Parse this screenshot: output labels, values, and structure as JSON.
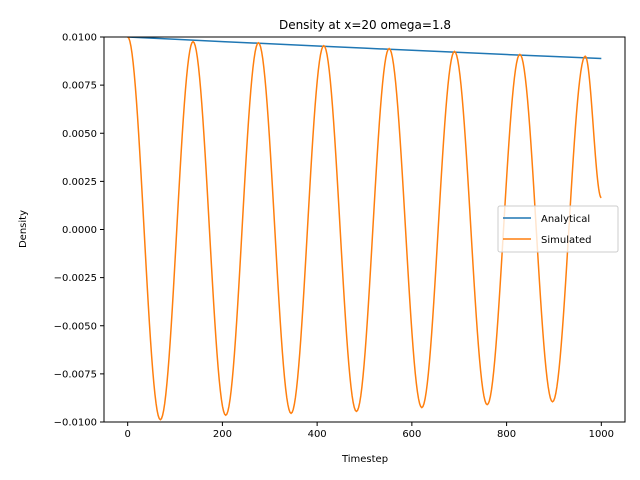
{
  "chart_data": {
    "type": "line",
    "title": "Density at x=20 omega=1.8",
    "xlabel": "Timestep",
    "ylabel": "Density",
    "xlim": [
      -50,
      1050
    ],
    "ylim": [
      -0.01,
      0.01
    ],
    "grid": false,
    "legend_position": "center-right",
    "x_ticks": [
      0,
      200,
      400,
      600,
      800,
      1000
    ],
    "x_tick_labels": [
      "0",
      "200",
      "400",
      "600",
      "800",
      "1000"
    ],
    "y_ticks": [
      -0.01,
      -0.0075,
      -0.005,
      -0.0025,
      0.0,
      0.0025,
      0.005,
      0.0075,
      0.01
    ],
    "y_tick_labels": [
      "−0.0100",
      "−0.0075",
      "−0.0050",
      "−0.0025",
      "0.0000",
      "0.0025",
      "0.0050",
      "0.0075",
      "0.0100"
    ],
    "series": [
      {
        "name": "Analytical",
        "color": "#1f77b4",
        "x": [
          0,
          100,
          200,
          300,
          400,
          500,
          600,
          700,
          800,
          900,
          1000
        ],
        "y": [
          0.01,
          0.00988,
          0.00976,
          0.00965,
          0.00953,
          0.00942,
          0.00931,
          0.0092,
          0.00909,
          0.00899,
          0.00888
        ]
      },
      {
        "name": "Simulated",
        "color": "#ff7f0e",
        "x": [
          0,
          69,
          138,
          207,
          276,
          345,
          414,
          483,
          552,
          621,
          690,
          759,
          828,
          897,
          966,
          1000
        ],
        "y": [
          0.01,
          -0.00988,
          0.00976,
          -0.00965,
          0.0097,
          -0.00955,
          0.00955,
          -0.00945,
          0.0094,
          -0.00925,
          0.00925,
          -0.0091,
          0.0091,
          -0.00895,
          0.009,
          0.00165
        ]
      }
    ]
  }
}
